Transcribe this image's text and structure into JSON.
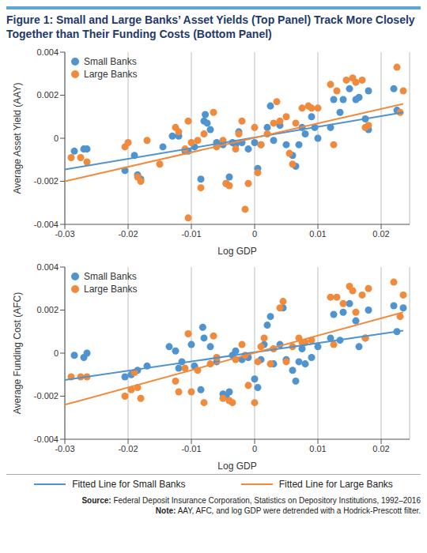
{
  "title": "Figure 1: Small and Large Banks’ Asset Yields (Top Panel) Track More Closely Together than Their Funding Costs (Bottom Panel)",
  "chart_data": [
    {
      "type": "scatter",
      "x_label": "Log GDP",
      "y_label": "Average Asset Yield (AAY)",
      "xlim": [
        -0.03,
        0.0245
      ],
      "xticks": [
        -0.03,
        -0.02,
        -0.01,
        0,
        0.01,
        0.02
      ],
      "ylim": [
        -0.004,
        0.004
      ],
      "yticks": [
        -0.004,
        -0.002,
        0,
        0.002,
        0.004
      ],
      "grid": true,
      "legend": "upper left",
      "series": [
        {
          "name": "Small Banks",
          "color": "#4f93cf",
          "type": "scatter",
          "marker": "circle",
          "x": [
            -0.0285,
            -0.027,
            -0.0265,
            -0.0205,
            -0.019,
            -0.0185,
            -0.018,
            -0.0145,
            -0.013,
            -0.012,
            -0.011,
            -0.0105,
            -0.0095,
            -0.0085,
            -0.008,
            -0.0078,
            -0.0075,
            -0.007,
            -0.006,
            -0.005,
            -0.0045,
            -0.004,
            -0.0035,
            -0.003,
            -0.0025,
            -0.002,
            -0.001,
            0,
            0.0005,
            0.001,
            0.002,
            0.0025,
            0.003,
            0.004,
            0.005,
            0.006,
            0.0065,
            0.007,
            0.0075,
            0.008,
            0.009,
            0.0095,
            0.01,
            0.012,
            0.0125,
            0.0135,
            0.014,
            0.015,
            0.016,
            0.0165,
            0.0175,
            0.018,
            0.018,
            0.022,
            0.0225
          ],
          "values": [
            -0.0006,
            -0.0005,
            -0.0005,
            -0.0015,
            -0.0008,
            -0.0017,
            -0.0019,
            -0.0004,
            0.0001,
            0.0001,
            -0.0006,
            -0.0006,
            -0.0004,
            -0.0019,
            0.0008,
            0.0011,
            0.0007,
            0.0004,
            -0.0002,
            -0.0003,
            -0.0021,
            -0.0018,
            -0.0002,
            -0.0003,
            0.0003,
            -0.0002,
            -0.0005,
            -0.0002,
            -0.0014,
            -0.0003,
            0.0005,
            0.0015,
            -0.0001,
            0.0006,
            -0.0003,
            -0.0008,
            -0.0013,
            -0.0003,
            0.0005,
            0.0002,
            0.001,
            0.0005,
            0,
            0.0005,
            0.0018,
            0.0012,
            0.0018,
            0.0023,
            0.0018,
            0.0019,
            0.0009,
            0.0004,
            0.0022,
            0.0023,
            0.0013
          ]
        },
        {
          "name": "Large Banks",
          "color": "#f08a3c",
          "type": "scatter",
          "marker": "circle",
          "x": [
            -0.029,
            -0.0275,
            -0.0265,
            -0.0205,
            -0.02,
            -0.0185,
            -0.018,
            -0.017,
            -0.015,
            -0.0125,
            -0.012,
            -0.011,
            -0.0105,
            -0.0105,
            -0.01,
            -0.009,
            -0.0085,
            -0.008,
            -0.0065,
            -0.006,
            -0.005,
            -0.0045,
            -0.004,
            -0.003,
            -0.0025,
            -0.002,
            -0.0015,
            -0.001,
            0,
            0.0005,
            0.001,
            0.002,
            0.003,
            0.0035,
            0.004,
            0.005,
            0.0055,
            0.006,
            0.0065,
            0.0075,
            0.0085,
            0.009,
            0.01,
            0.012,
            0.0125,
            0.013,
            0.0145,
            0.0155,
            0.016,
            0.017,
            0.0175,
            0.018,
            0.0225,
            0.023,
            0.0235
          ],
          "values": [
            -0.0009,
            -0.0009,
            -0.0011,
            -0.0004,
            -0.0002,
            -0.0018,
            -0.002,
            -0.0001,
            -0.0012,
            0.0005,
            0.0003,
            -0.0005,
            0.0008,
            -0.0037,
            -0.0002,
            -0.0001,
            -0.0023,
            0.0002,
            0.0012,
            -0.0004,
            -0.0001,
            -0.0021,
            -0.0022,
            -0.0005,
            0.0002,
            0.0008,
            -0.0033,
            -0.0021,
            0.0005,
            -0.0016,
            -0.0003,
            0.0002,
            0.0007,
            0.0017,
            0.0008,
            0.001,
            -0.0007,
            -0.0012,
            0.0007,
            0.0014,
            0.0015,
            0.0014,
            0.0014,
            0.0025,
            -0.0003,
            0.0022,
            0.0027,
            0.0028,
            0.0026,
            0.0027,
            0.0005,
            0.0006,
            0.0033,
            0.0012,
            0.0022
          ]
        },
        {
          "name": "Fitted Line for Small Banks",
          "color": "#4f93cf",
          "type": "line",
          "line_style": "solid",
          "x": [
            -0.03,
            0.0235
          ],
          "values": [
            -0.00145,
            0.0012
          ]
        },
        {
          "name": "Fitted Line for Large Banks",
          "color": "#f08a3c",
          "type": "line",
          "line_style": "solid",
          "x": [
            -0.03,
            0.0235
          ],
          "values": [
            -0.002,
            0.0016
          ]
        }
      ]
    },
    {
      "type": "scatter",
      "x_label": "Log GDP",
      "y_label": "Average Funding Cost (AFC)",
      "xlim": [
        -0.03,
        0.0245
      ],
      "xticks": [
        -0.03,
        -0.02,
        -0.01,
        0,
        0.01,
        0.02
      ],
      "ylim": [
        -0.004,
        0.004
      ],
      "yticks": [
        -0.004,
        -0.002,
        0,
        0.002,
        0.004
      ],
      "grid": true,
      "legend": "upper left",
      "series": [
        {
          "name": "Small Banks",
          "color": "#4f93cf",
          "type": "scatter",
          "marker": "circle",
          "x": [
            -0.0285,
            -0.027,
            -0.0265,
            -0.0205,
            -0.0195,
            -0.0185,
            -0.017,
            -0.0135,
            -0.0125,
            -0.012,
            -0.0115,
            -0.01,
            -0.0095,
            -0.0085,
            -0.0082,
            -0.008,
            -0.007,
            -0.006,
            -0.005,
            -0.0045,
            -0.004,
            -0.0035,
            -0.003,
            -0.002,
            -0.001,
            0,
            0.0005,
            0.001,
            0.0015,
            0.002,
            0.0025,
            0.003,
            0.004,
            0.0045,
            0.005,
            0.006,
            0.0065,
            0.007,
            0.0075,
            0.008,
            0.009,
            0.01,
            0.012,
            0.0125,
            0.0135,
            0.014,
            0.015,
            0.016,
            0.0165,
            0.0175,
            0.018,
            0.022,
            0.0225,
            0.0235
          ],
          "values": [
            -0.0001,
            -0.0002,
            0,
            -0.0011,
            -0.001,
            -0.0008,
            -0.0006,
            0.0003,
            0.0001,
            -0.0007,
            -0.0004,
            0.0004,
            -0.0006,
            -0.0017,
            0.0012,
            0.0007,
            0.0003,
            -0.0004,
            -0.0019,
            -0.002,
            -0.0018,
            -0.0001,
            0.0001,
            -0.0003,
            -0.0002,
            -0.0012,
            -0.0016,
            -0.0003,
            0.0004,
            0.0013,
            0.0017,
            -0.0005,
            0.0004,
            0.0021,
            -0.0003,
            -0.0008,
            -0.0013,
            -0.0004,
            0.0002,
            -0.0005,
            -0.0002,
            0.0003,
            0.0007,
            0.0018,
            0.0006,
            0.0019,
            0.0023,
            0.0015,
            0.0003,
            0.0007,
            0.002,
            0.0022,
            0.001,
            0.0021
          ]
        },
        {
          "name": "Large Banks",
          "color": "#f08a3c",
          "type": "scatter",
          "marker": "circle",
          "x": [
            -0.029,
            -0.0275,
            -0.0265,
            -0.0205,
            -0.0195,
            -0.019,
            -0.0185,
            -0.018,
            -0.0125,
            -0.012,
            -0.011,
            -0.0105,
            -0.01,
            -0.009,
            -0.008,
            -0.007,
            -0.0065,
            -0.006,
            -0.005,
            -0.004,
            -0.0035,
            -0.003,
            -0.002,
            -0.0015,
            -0.001,
            0,
            0.0005,
            0.001,
            0.0015,
            0.0025,
            0.003,
            0.004,
            0.0045,
            0.005,
            0.006,
            0.007,
            0.0075,
            0.008,
            0.009,
            0.012,
            0.0125,
            0.013,
            0.014,
            0.015,
            0.0155,
            0.016,
            0.017,
            0.0175,
            0.018,
            0.022,
            0.023,
            0.0235
          ],
          "values": [
            -0.0011,
            -0.0011,
            -0.0011,
            -0.002,
            -0.0017,
            -0.0009,
            -0.0016,
            -0.0021,
            -0.0013,
            -0.0018,
            -0.0007,
            0.0009,
            -0.0018,
            -0.0008,
            -0.0023,
            -0.0005,
            0.0008,
            -0.0002,
            -0.0021,
            -0.0022,
            -0.0023,
            -0.0003,
            0.0004,
            -0.0001,
            -0.0015,
            -0.0023,
            -0.0004,
            0.0003,
            0.0007,
            -0.0005,
            0.0002,
            0.0021,
            0.0024,
            -0.0004,
            0.0003,
            0.0007,
            0.0005,
            0.0005,
            0.0006,
            0.0026,
            0.0004,
            0.0026,
            0.0023,
            0.0031,
            0.0029,
            0.0019,
            0.0027,
            0.0007,
            0.003,
            0.0033,
            0.0017,
            0.0027
          ]
        },
        {
          "name": "Fitted Line for Small Banks",
          "color": "#4f93cf",
          "type": "line",
          "line_style": "solid",
          "x": [
            -0.03,
            0.0235
          ],
          "values": [
            -0.00125,
            0.00105
          ]
        },
        {
          "name": "Fitted Line for Large Banks",
          "color": "#f08a3c",
          "type": "line",
          "line_style": "solid",
          "x": [
            -0.03,
            0.0235
          ],
          "values": [
            -0.0024,
            0.0019
          ]
        }
      ]
    }
  ],
  "source": {
    "label": "Source:",
    "text": "Federal Deposit Insurance Corporation, Statistics on Depository Institutions, 1992–2016"
  },
  "note": {
    "label": "Note:",
    "text": "AAY, AFC, and log GDP were detrended with a Hodrick-Prescott filter."
  }
}
